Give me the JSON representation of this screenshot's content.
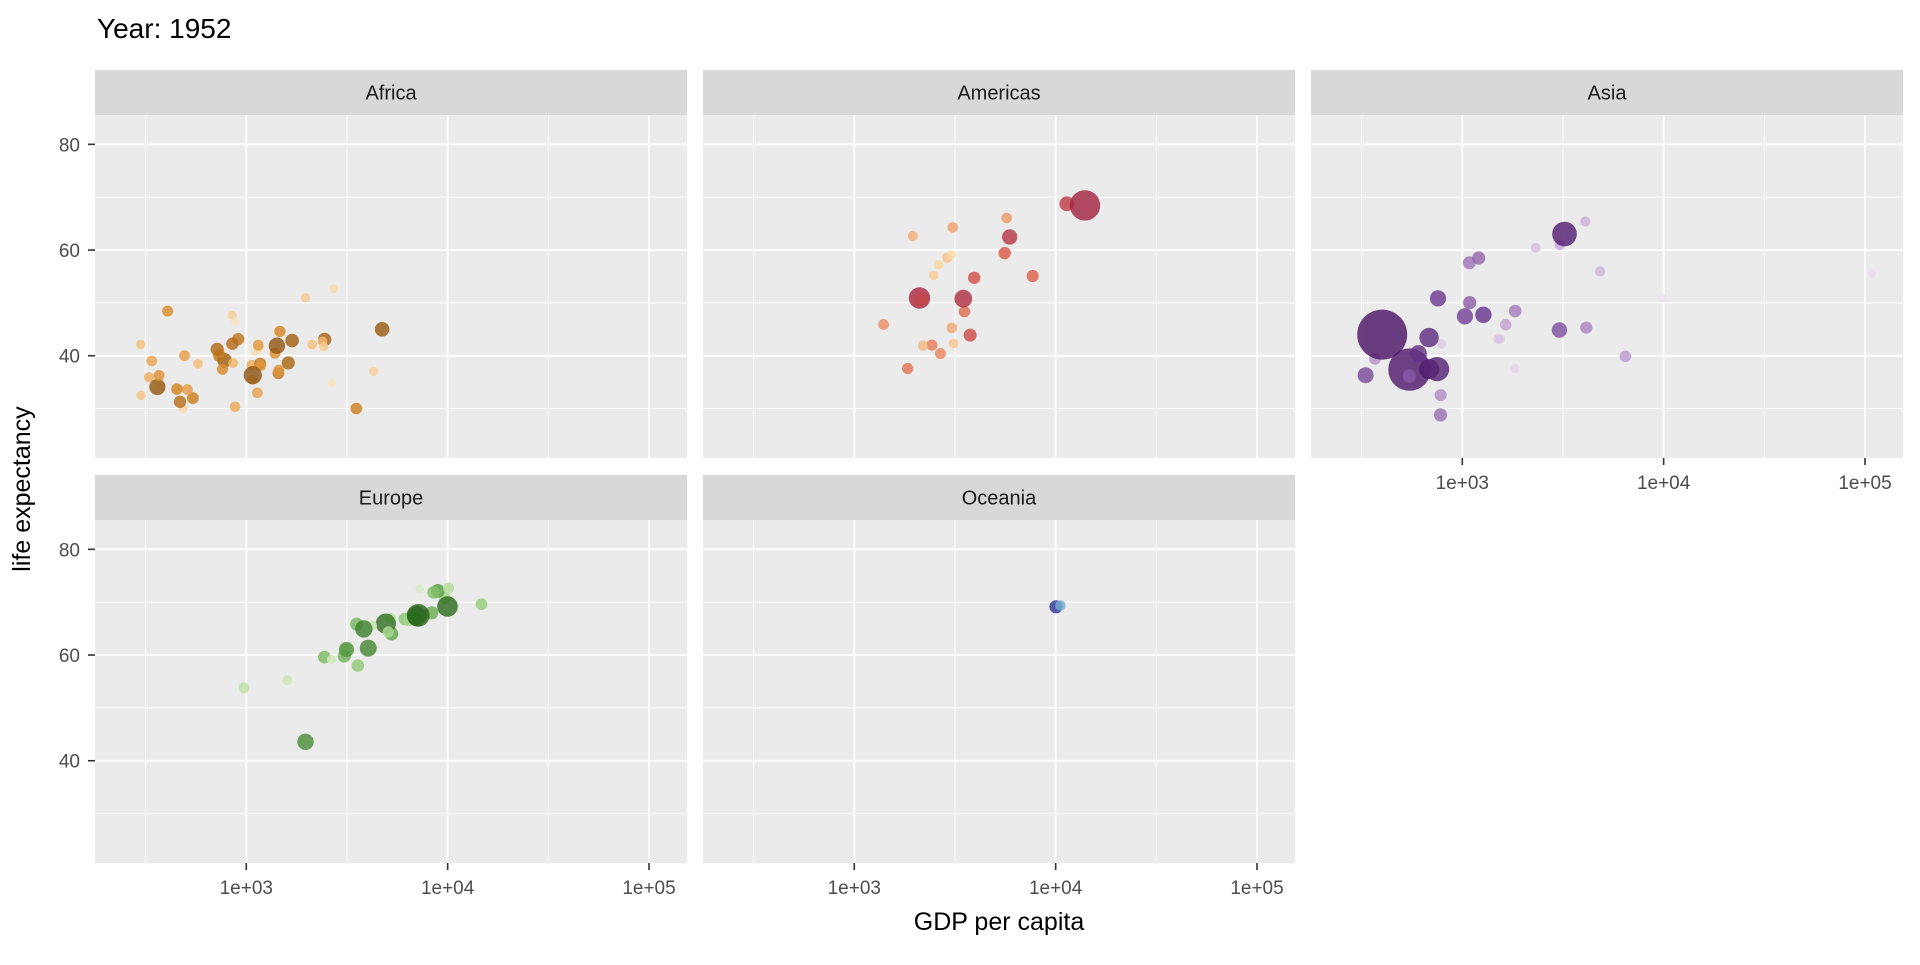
{
  "chart_data": {
    "type": "scatter",
    "title": "Year: 1952",
    "xlabel": "GDP per capita",
    "ylabel": "life expectancy",
    "x_scale": "log10",
    "x_log_range": [
      2.2487,
      5.1887
    ],
    "x_tick_labels": [
      "1e+03",
      "1e+04",
      "1e+05"
    ],
    "x_tick_logs": [
      3,
      4,
      5
    ],
    "x_minor_logs": [
      2.5,
      3.5,
      4.5
    ],
    "y_range": [
      20.65,
      85.55
    ],
    "y_tick_labels": [
      "80",
      "60",
      "40"
    ],
    "y_ticks": [
      80,
      60,
      40
    ],
    "y_minor": [
      70,
      50,
      30
    ],
    "size_by": "population",
    "legend": "none",
    "point_columns": [
      "gdp_per_capita",
      "life_expectancy",
      "population"
    ],
    "facets": [
      {
        "name": "Africa",
        "row": 0,
        "col": 0,
        "x_axis": false,
        "y_axis": true,
        "points": [
          [
            2449.0,
            43.08,
            9279525
          ],
          [
            3520.6,
            30.02,
            4232095
          ],
          [
            1062.8,
            38.22,
            1738315
          ],
          [
            851.2,
            47.62,
            442308
          ],
          [
            543.3,
            31.98,
            4469979
          ],
          [
            339.3,
            39.03,
            2445618
          ],
          [
            1172.7,
            38.52,
            5009067
          ],
          [
            1071.3,
            35.46,
            1291695
          ],
          [
            1178.7,
            38.09,
            2682462
          ],
          [
            1103.0,
            40.72,
            153936
          ],
          [
            780.5,
            39.14,
            14100005
          ],
          [
            2125.6,
            42.11,
            854885
          ],
          [
            1388.6,
            40.48,
            2977019
          ],
          [
            2669.5,
            34.81,
            63149
          ],
          [
            1418.8,
            41.89,
            22223309
          ],
          [
            375.6,
            34.48,
            216964
          ],
          [
            328.9,
            35.93,
            1438760
          ],
          [
            362.1,
            34.08,
            20860941
          ],
          [
            4293.5,
            37.0,
            420702
          ],
          [
            485.2,
            30.0,
            284320
          ],
          [
            911.3,
            43.15,
            5581001
          ],
          [
            510.2,
            33.61,
            2664249
          ],
          [
            299.9,
            32.5,
            580653
          ],
          [
            853.5,
            42.27,
            6464046
          ],
          [
            298.8,
            42.14,
            748747
          ],
          [
            575.6,
            38.48,
            863308
          ],
          [
            2387.5,
            42.72,
            1019729
          ],
          [
            1443.0,
            36.68,
            4762912
          ],
          [
            369.2,
            36.26,
            2917802
          ],
          [
            452.3,
            33.68,
            3838168
          ],
          [
            743.1,
            40.54,
            1022556
          ],
          [
            1968.0,
            50.99,
            516556
          ],
          [
            1688.2,
            42.87,
            9939217
          ],
          [
            468.5,
            31.29,
            6446316
          ],
          [
            2423.8,
            41.72,
            485831
          ],
          [
            761.9,
            37.44,
            3379468
          ],
          [
            1077.3,
            36.32,
            33119096
          ],
          [
            2718.9,
            52.72,
            257700
          ],
          [
            493.3,
            40.0,
            2534927
          ],
          [
            879.6,
            46.47,
            60011
          ],
          [
            1450.4,
            37.28,
            2755589
          ],
          [
            879.8,
            30.33,
            2143249
          ],
          [
            1135.8,
            32.98,
            2526994
          ],
          [
            4725.3,
            45.01,
            14264935
          ],
          [
            1616.0,
            38.64,
            8504667
          ],
          [
            1148.4,
            41.41,
            290243
          ],
          [
            716.7,
            41.22,
            8322925
          ],
          [
            859.8,
            38.6,
            1219113
          ],
          [
            1468.5,
            44.6,
            3647735
          ],
          [
            734.8,
            39.98,
            5824797
          ],
          [
            1147.4,
            42.04,
            2672000
          ],
          [
            406.9,
            48.45,
            3080907
          ]
        ]
      },
      {
        "name": "Americas",
        "row": 0,
        "col": 1,
        "x_axis": false,
        "y_axis": false,
        "points": [
          [
            5911.3,
            62.48,
            17876956
          ],
          [
            2677.3,
            40.41,
            2883315
          ],
          [
            2108.9,
            50.92,
            56602560
          ],
          [
            11367.2,
            68.75,
            14785584
          ],
          [
            3940.0,
            54.75,
            6377619
          ],
          [
            2144.1,
            50.64,
            12350771
          ],
          [
            2627.0,
            57.21,
            926317
          ],
          [
            5586.5,
            59.42,
            6007797
          ],
          [
            1397.7,
            45.93,
            2491346
          ],
          [
            3522.1,
            48.36,
            3548753
          ],
          [
            3048.3,
            45.26,
            2042865
          ],
          [
            2428.2,
            42.02,
            3146381
          ],
          [
            1840.4,
            37.58,
            3201488
          ],
          [
            2194.9,
            41.91,
            1517453
          ],
          [
            2898.5,
            58.53,
            1426095
          ],
          [
            3478.1,
            50.79,
            30144317
          ],
          [
            3112.4,
            42.31,
            1165790
          ],
          [
            2480.4,
            55.19,
            940080
          ],
          [
            1952.3,
            62.65,
            1555876
          ],
          [
            3758.5,
            43.9,
            8025700
          ],
          [
            3082.0,
            64.28,
            2227000
          ],
          [
            3023.3,
            59.1,
            662850
          ],
          [
            13990.5,
            68.44,
            157553000
          ],
          [
            5716.8,
            66.07,
            2252965
          ],
          [
            7689.8,
            55.09,
            5439568
          ]
        ]
      },
      {
        "name": "Asia",
        "row": 0,
        "col": 2,
        "x_axis": true,
        "y_axis": false,
        "points": [
          [
            779.4,
            28.8,
            8425333
          ],
          [
            9867.1,
            50.94,
            120447
          ],
          [
            684.2,
            37.48,
            46886859
          ],
          [
            368.5,
            39.42,
            4693836
          ],
          [
            400.4,
            44.0,
            556263527
          ],
          [
            3054.4,
            60.96,
            2125900
          ],
          [
            546.6,
            37.37,
            372000000
          ],
          [
            749.7,
            37.47,
            82052000
          ],
          [
            3035.3,
            44.87,
            17272000
          ],
          [
            4129.8,
            45.32,
            5441766
          ],
          [
            4086.5,
            65.39,
            1620914
          ],
          [
            3217.0,
            63.03,
            86459025
          ],
          [
            1546.9,
            43.16,
            607914
          ],
          [
            1088.3,
            50.06,
            8865488
          ],
          [
            1030.6,
            47.45,
            20947571
          ],
          [
            108382.4,
            55.56,
            160000
          ],
          [
            4834.8,
            55.93,
            1439529
          ],
          [
            1831.1,
            48.46,
            6748378
          ],
          [
            786.6,
            42.24,
            800663
          ],
          [
            331.0,
            36.32,
            20092996
          ],
          [
            545.9,
            36.16,
            9182536
          ],
          [
            1828.2,
            37.58,
            507833
          ],
          [
            684.6,
            43.44,
            41346560
          ],
          [
            1272.9,
            47.75,
            22438691
          ],
          [
            6459.6,
            39.88,
            4005677
          ],
          [
            2315.1,
            60.4,
            1127000
          ],
          [
            1083.5,
            57.59,
            7982342
          ],
          [
            1643.5,
            45.88,
            3661549
          ],
          [
            1206.9,
            58.5,
            8550362
          ],
          [
            757.8,
            50.85,
            21289402
          ],
          [
            605.1,
            40.41,
            26246839
          ],
          [
            1515.6,
            43.16,
            1030585
          ],
          [
            781.7,
            32.55,
            4963829
          ]
        ]
      },
      {
        "name": "Europe",
        "row": 1,
        "col": 0,
        "x_axis": true,
        "y_axis": true,
        "points": [
          [
            1601.1,
            55.23,
            1282697
          ],
          [
            6137.1,
            66.8,
            6927772
          ],
          [
            8343.1,
            68.0,
            8730405
          ],
          [
            973.5,
            53.82,
            2791000
          ],
          [
            2444.3,
            59.6,
            7274900
          ],
          [
            3119.2,
            61.21,
            3882229
          ],
          [
            6876.1,
            66.87,
            9125183
          ],
          [
            9692.4,
            70.78,
            4334000
          ],
          [
            6424.5,
            66.55,
            4090500
          ],
          [
            7029.8,
            67.41,
            42459667
          ],
          [
            7144.1,
            67.5,
            69145952
          ],
          [
            3530.7,
            65.86,
            7733250
          ],
          [
            5263.7,
            64.03,
            9504000
          ],
          [
            7267.7,
            72.49,
            147962
          ],
          [
            5210.3,
            66.91,
            2952156
          ],
          [
            4931.4,
            65.94,
            47666000
          ],
          [
            2647.6,
            59.16,
            413834
          ],
          [
            8941.6,
            72.13,
            10381988
          ],
          [
            10095.4,
            72.67,
            3327728
          ],
          [
            4029.3,
            61.31,
            25730551
          ],
          [
            3068.3,
            59.82,
            8526050
          ],
          [
            3144.6,
            61.05,
            16630000
          ],
          [
            3581.5,
            58.0,
            6860147
          ],
          [
            5074.7,
            64.36,
            3558137
          ],
          [
            4215.0,
            65.57,
            1489518
          ],
          [
            3834.0,
            64.94,
            28549870
          ],
          [
            8527.8,
            71.86,
            7124673
          ],
          [
            14734.2,
            69.62,
            4815000
          ],
          [
            1969.1,
            43.59,
            22235677
          ],
          [
            9979.5,
            69.18,
            50430000
          ]
        ]
      },
      {
        "name": "Oceania",
        "row": 1,
        "col": 1,
        "x_axis": true,
        "y_axis": false,
        "points": [
          [
            10039.6,
            69.12,
            8691212
          ],
          [
            10556.6,
            69.39,
            1994794
          ]
        ]
      }
    ]
  },
  "style": {
    "panel_bg": "#EBEBEB",
    "strip_bg": "#D8D8D8",
    "grid_color": "#FFFFFF",
    "axis_text_color": "#4D4D4D",
    "tick_mark_color": "#333333",
    "strip_text_color": "#1A1A1A",
    "title_color": "#000000",
    "point_opacity": 0.82,
    "continent_ramps": {
      "Africa": [
        "#FAE3BF",
        "#F2B469",
        "#D3821F",
        "#8E5412"
      ],
      "Americas": [
        "#FBDCA4",
        "#F2A06C",
        "#D95948",
        "#A32342"
      ],
      "Asia": [
        "#EDE1EF",
        "#CCAEDA",
        "#A275B8",
        "#6C3B91",
        "#4B1566"
      ],
      "Europe": [
        "#D5ECC0",
        "#A0D383",
        "#62A84C",
        "#27641A"
      ],
      "Oceania": [
        "#74ADD1",
        "#313695"
      ]
    }
  }
}
